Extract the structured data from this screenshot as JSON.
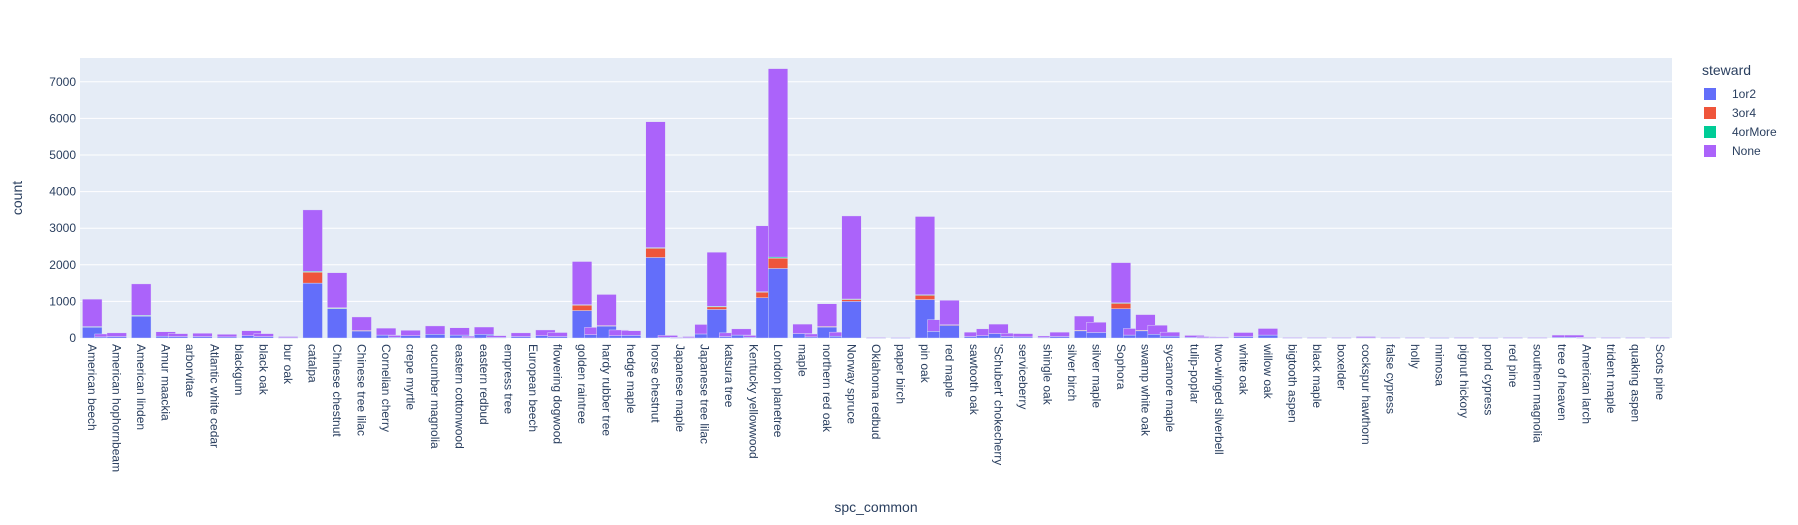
{
  "chart_data": {
    "type": "bar",
    "barmode": "stack",
    "title": "",
    "xlabel": "spc_common",
    "ylabel": "count",
    "ylim": [
      0,
      7650
    ],
    "yticks": [
      0,
      1000,
      2000,
      3000,
      4000,
      5000,
      6000,
      7000
    ],
    "grid": true,
    "legend": {
      "title": "steward",
      "placement": "top-right"
    },
    "categories": [
      "American beech",
      "American hophornbeam",
      "American linden",
      "Amur maackia",
      "arborvitae",
      "Atlantic white cedar",
      "blackgum",
      "black oak",
      "bur oak",
      "catalpa",
      "Chinese chestnut",
      "Chinese tree lilac",
      "Cornelian cherry",
      "crepe myrtle",
      "cucumber magnolia",
      "eastern cottonwood",
      "eastern redbud",
      "empress tree",
      "European beech",
      "flowering dogwood",
      "golden raintree",
      "hardy rubber tree",
      "hedge maple",
      "horse chestnut",
      "Japanese maple",
      "Japanese tree lilac",
      "katsura tree",
      "Kentucky yellowwood",
      "London planetree",
      "maple",
      "northern red oak",
      "Norway spruce",
      "Oklahoma redbud",
      "paper birch",
      "pin oak",
      "red maple",
      "sawtooth oak",
      "'Schubert' chokecherry",
      "serviceberry",
      "shingle oak",
      "silver birch",
      "silver maple",
      "Sophora",
      "swamp white oak",
      "sycamore maple",
      "tulip-poplar",
      "two-winged silverbell",
      "white oak",
      "willow oak",
      "bigtooth aspen",
      "black maple",
      "boxelder",
      "cockspur hawthorn",
      "false cypress",
      "holly",
      "mimosa",
      "pignut hickory",
      "pond cypress",
      "red pine",
      "southern magnolia",
      "tree of heaven",
      "American larch",
      "trident maple",
      "quaking aspen",
      "Scots pine"
    ],
    "bars": [
      {
        "x": 0,
        "series": [
          300,
          10,
          2,
          750
        ]
      },
      {
        "x": 0.5,
        "series": [
          30,
          0,
          0,
          80
        ]
      },
      {
        "x": 1,
        "series": [
          40,
          0,
          0,
          100
        ]
      },
      {
        "x": 2,
        "series": [
          600,
          15,
          3,
          860
        ]
      },
      {
        "x": 3,
        "series": [
          50,
          0,
          0,
          120
        ]
      },
      {
        "x": 3.5,
        "series": [
          40,
          0,
          0,
          80
        ]
      },
      {
        "x": 4.5,
        "series": [
          40,
          0,
          0,
          90
        ]
      },
      {
        "x": 5.5,
        "series": [
          30,
          0,
          0,
          70
        ]
      },
      {
        "x": 6.5,
        "series": [
          60,
          0,
          0,
          140
        ]
      },
      {
        "x": 7,
        "series": [
          40,
          0,
          0,
          80
        ]
      },
      {
        "x": 8,
        "series": [
          10,
          0,
          0,
          30
        ]
      },
      {
        "x": 9,
        "series": [
          1500,
          300,
          20,
          1680
        ]
      },
      {
        "x": 10,
        "series": [
          800,
          20,
          5,
          960
        ]
      },
      {
        "x": 11,
        "series": [
          200,
          5,
          0,
          370
        ]
      },
      {
        "x": 12,
        "series": [
          80,
          0,
          0,
          190
        ]
      },
      {
        "x": 12.5,
        "series": [
          20,
          0,
          0,
          50
        ]
      },
      {
        "x": 13,
        "series": [
          60,
          0,
          0,
          150
        ]
      },
      {
        "x": 14,
        "series": [
          100,
          0,
          0,
          230
        ]
      },
      {
        "x": 15,
        "series": [
          80,
          0,
          0,
          200
        ]
      },
      {
        "x": 15.5,
        "series": [
          10,
          0,
          0,
          40
        ]
      },
      {
        "x": 16,
        "series": [
          100,
          0,
          0,
          200
        ]
      },
      {
        "x": 16.5,
        "series": [
          15,
          0,
          0,
          50
        ]
      },
      {
        "x": 17.5,
        "series": [
          40,
          0,
          0,
          100
        ]
      },
      {
        "x": 18.5,
        "series": [
          60,
          0,
          0,
          160
        ]
      },
      {
        "x": 19,
        "series": [
          40,
          0,
          0,
          110
        ]
      },
      {
        "x": 20,
        "series": [
          750,
          150,
          10,
          1180
        ]
      },
      {
        "x": 20.5,
        "series": [
          90,
          0,
          0,
          200
        ]
      },
      {
        "x": 21,
        "series": [
          330,
          10,
          0,
          850
        ]
      },
      {
        "x": 21.5,
        "series": [
          60,
          0,
          0,
          160
        ]
      },
      {
        "x": 22,
        "series": [
          70,
          0,
          0,
          130
        ]
      },
      {
        "x": 23,
        "series": [
          2200,
          250,
          20,
          3440
        ]
      },
      {
        "x": 23.5,
        "series": [
          20,
          0,
          0,
          50
        ]
      },
      {
        "x": 24,
        "series": [
          5,
          0,
          0,
          10
        ]
      },
      {
        "x": 24.5,
        "series": [
          10,
          0,
          0,
          30
        ]
      },
      {
        "x": 25,
        "series": [
          110,
          0,
          0,
          260
        ]
      },
      {
        "x": 25.5,
        "series": [
          780,
          80,
          5,
          1480
        ]
      },
      {
        "x": 26,
        "series": [
          40,
          0,
          0,
          100
        ]
      },
      {
        "x": 26.5,
        "series": [
          80,
          0,
          0,
          170
        ]
      },
      {
        "x": 27,
        "series": [
          20,
          0,
          0,
          50
        ]
      },
      {
        "x": 27.5,
        "series": [
          1100,
          150,
          15,
          1800
        ]
      },
      {
        "x": 28,
        "series": [
          1900,
          280,
          30,
          5150
        ]
      },
      {
        "x": 29,
        "series": [
          120,
          0,
          0,
          260
        ]
      },
      {
        "x": 29.5,
        "series": [
          30,
          0,
          0,
          80
        ]
      },
      {
        "x": 30,
        "series": [
          300,
          15,
          0,
          620
        ]
      },
      {
        "x": 30.5,
        "series": [
          50,
          0,
          0,
          110
        ]
      },
      {
        "x": 31,
        "series": [
          1000,
          60,
          5,
          2270
        ]
      },
      {
        "x": 32,
        "series": [
          5,
          0,
          0,
          10
        ]
      },
      {
        "x": 33,
        "series": [
          5,
          0,
          0,
          15
        ]
      },
      {
        "x": 34,
        "series": [
          1050,
          120,
          10,
          2140
        ]
      },
      {
        "x": 34.5,
        "series": [
          180,
          0,
          0,
          320
        ]
      },
      {
        "x": 35,
        "series": [
          350,
          10,
          0,
          670
        ]
      },
      {
        "x": 36,
        "series": [
          40,
          0,
          0,
          120
        ]
      },
      {
        "x": 36.5,
        "series": [
          60,
          0,
          0,
          190
        ]
      },
      {
        "x": 37,
        "series": [
          120,
          0,
          0,
          260
        ]
      },
      {
        "x": 37.5,
        "series": [
          40,
          0,
          0,
          90
        ]
      },
      {
        "x": 38,
        "series": [
          30,
          0,
          0,
          90
        ]
      },
      {
        "x": 39,
        "series": [
          15,
          0,
          0,
          40
        ]
      },
      {
        "x": 39.5,
        "series": [
          40,
          0,
          0,
          120
        ]
      },
      {
        "x": 40.5,
        "series": [
          200,
          10,
          0,
          390
        ]
      },
      {
        "x": 41,
        "series": [
          150,
          0,
          0,
          280
        ]
      },
      {
        "x": 42,
        "series": [
          800,
          150,
          10,
          1100
        ]
      },
      {
        "x": 42.5,
        "series": [
          80,
          0,
          0,
          180
        ]
      },
      {
        "x": 43,
        "series": [
          200,
          10,
          0,
          430
        ]
      },
      {
        "x": 43.5,
        "series": [
          100,
          0,
          0,
          250
        ]
      },
      {
        "x": 44,
        "series": [
          50,
          0,
          0,
          110
        ]
      },
      {
        "x": 45,
        "series": [
          20,
          0,
          0,
          50
        ]
      },
      {
        "x": 45.5,
        "series": [
          10,
          0,
          0,
          30
        ]
      },
      {
        "x": 46,
        "series": [
          10,
          0,
          0,
          20
        ]
      },
      {
        "x": 47,
        "series": [
          40,
          0,
          0,
          110
        ]
      },
      {
        "x": 48,
        "series": [
          80,
          0,
          0,
          180
        ]
      },
      {
        "x": 49,
        "series": [
          5,
          0,
          0,
          10
        ]
      },
      {
        "x": 50,
        "series": [
          5,
          0,
          0,
          10
        ]
      },
      {
        "x": 51,
        "series": [
          5,
          0,
          0,
          10
        ]
      },
      {
        "x": 52,
        "series": [
          10,
          0,
          0,
          30
        ]
      },
      {
        "x": 53,
        "series": [
          5,
          0,
          0,
          10
        ]
      },
      {
        "x": 54,
        "series": [
          5,
          0,
          0,
          10
        ]
      },
      {
        "x": 55,
        "series": [
          5,
          0,
          0,
          15
        ]
      },
      {
        "x": 56,
        "series": [
          5,
          0,
          0,
          10
        ]
      },
      {
        "x": 57,
        "series": [
          5,
          0,
          0,
          15
        ]
      },
      {
        "x": 58,
        "series": [
          5,
          0,
          0,
          10
        ]
      },
      {
        "x": 59,
        "series": [
          5,
          0,
          0,
          10
        ]
      },
      {
        "x": 60,
        "series": [
          20,
          0,
          0,
          60
        ]
      },
      {
        "x": 60.5,
        "series": [
          20,
          0,
          0,
          60
        ]
      },
      {
        "x": 61,
        "series": [
          5,
          0,
          0,
          10
        ]
      },
      {
        "x": 62,
        "series": [
          5,
          0,
          0,
          10
        ]
      },
      {
        "x": 63,
        "series": [
          5,
          0,
          0,
          10
        ]
      },
      {
        "x": 64,
        "series": [
          5,
          0,
          0,
          10
        ]
      }
    ],
    "series": [
      {
        "name": "1or2",
        "color": "#636efa"
      },
      {
        "name": "3or4",
        "color": "#ef553b"
      },
      {
        "name": "4orMore",
        "color": "#00cc96"
      },
      {
        "name": "None",
        "color": "#ab63fa"
      }
    ]
  }
}
